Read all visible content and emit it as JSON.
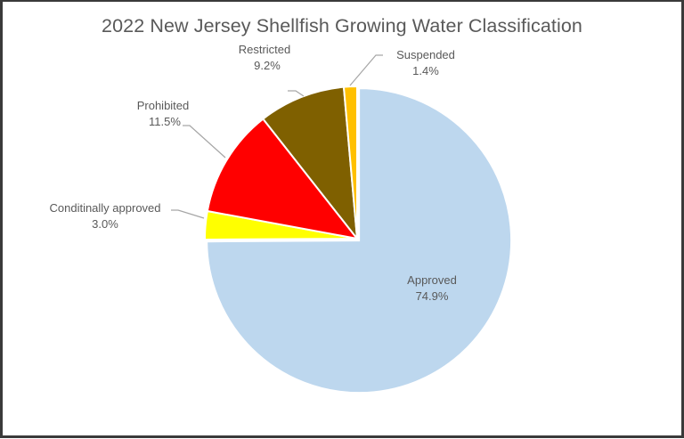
{
  "chart_data": {
    "type": "pie",
    "title": "2022 New Jersey Shellfish Growing Water Classification",
    "categories": [
      "Approved",
      "Conditinally approved",
      "Prohibited",
      "Restricted",
      "Suspended"
    ],
    "values": [
      74.9,
      3.0,
      11.5,
      9.2,
      1.4
    ],
    "value_labels": [
      "74.9%",
      "3.0%",
      "11.5%",
      "9.2%",
      "1.4%"
    ],
    "colors": [
      "#BDD7EE",
      "#FFFF00",
      "#FF0000",
      "#7F6000",
      "#FFC000"
    ],
    "start_angle_deg": 0,
    "direction": "clockwise",
    "legend": "none (data labels with leader lines)",
    "exploded": [
      "Approved"
    ]
  },
  "labels": {
    "approved": {
      "name": "Approved",
      "pct": "74.9%"
    },
    "conditional": {
      "name": "Conditinally approved",
      "pct": "3.0%"
    },
    "prohibited": {
      "name": "Prohibited",
      "pct": "11.5%"
    },
    "restricted": {
      "name": "Restricted",
      "pct": "9.2%"
    },
    "suspended": {
      "name": "Suspended",
      "pct": "1.4%"
    }
  }
}
